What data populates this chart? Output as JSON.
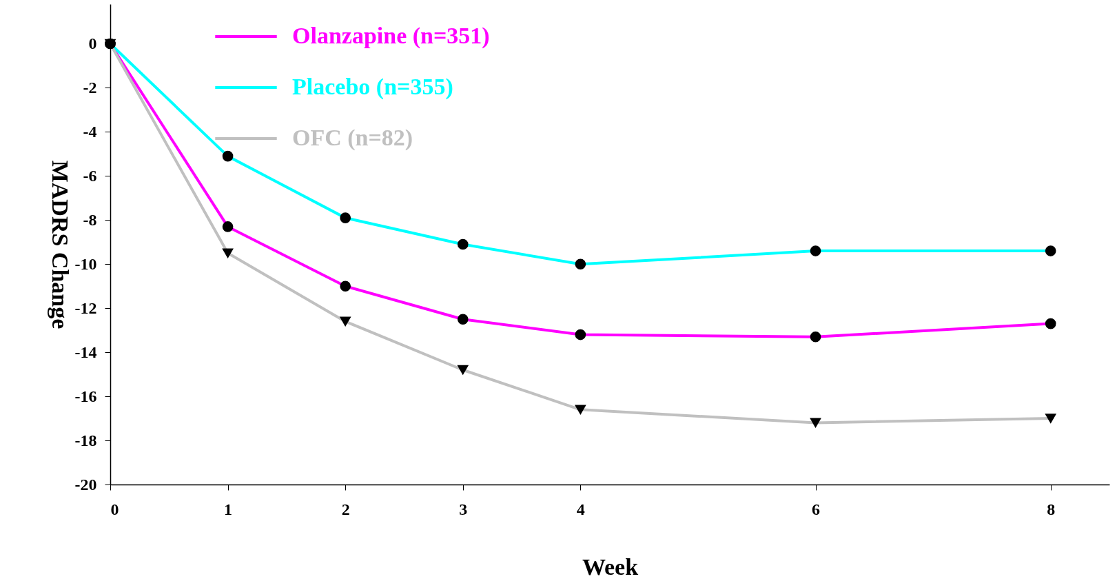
{
  "chart_data": {
    "type": "line",
    "xlabel": "Week",
    "ylabel": "MADRS Change",
    "x": [
      0,
      1,
      2,
      3,
      4,
      6,
      8
    ],
    "series": [
      {
        "name": "Olanzapine (n=351)",
        "color": "#ff00ff",
        "marker": "circle",
        "values": [
          0,
          -8.3,
          -11,
          -12.5,
          -13.2,
          -13.3,
          -12.7
        ]
      },
      {
        "name": "Placebo (n=355)",
        "color": "#00ffff",
        "marker": "circle",
        "values": [
          0,
          -5.1,
          -7.9,
          -9.1,
          -10,
          -9.4,
          -9.4
        ]
      },
      {
        "name": "OFC (n=82)",
        "color": "#c0c0c0",
        "marker": "triangle-down",
        "values": [
          0,
          -9.5,
          -12.6,
          -14.8,
          -16.6,
          -17.2,
          -17.0
        ]
      }
    ],
    "xlim": [
      0,
      8.5
    ],
    "xticks": [
      0,
      1,
      2,
      3,
      4,
      6,
      8
    ],
    "ylim": [
      -20,
      1.8
    ],
    "yticks": [
      0,
      -2,
      -4,
      -6,
      -8,
      -10,
      -12,
      -14,
      -16,
      -18,
      -20
    ],
    "grid": false,
    "legend": "top left",
    "line_style": "solid"
  }
}
